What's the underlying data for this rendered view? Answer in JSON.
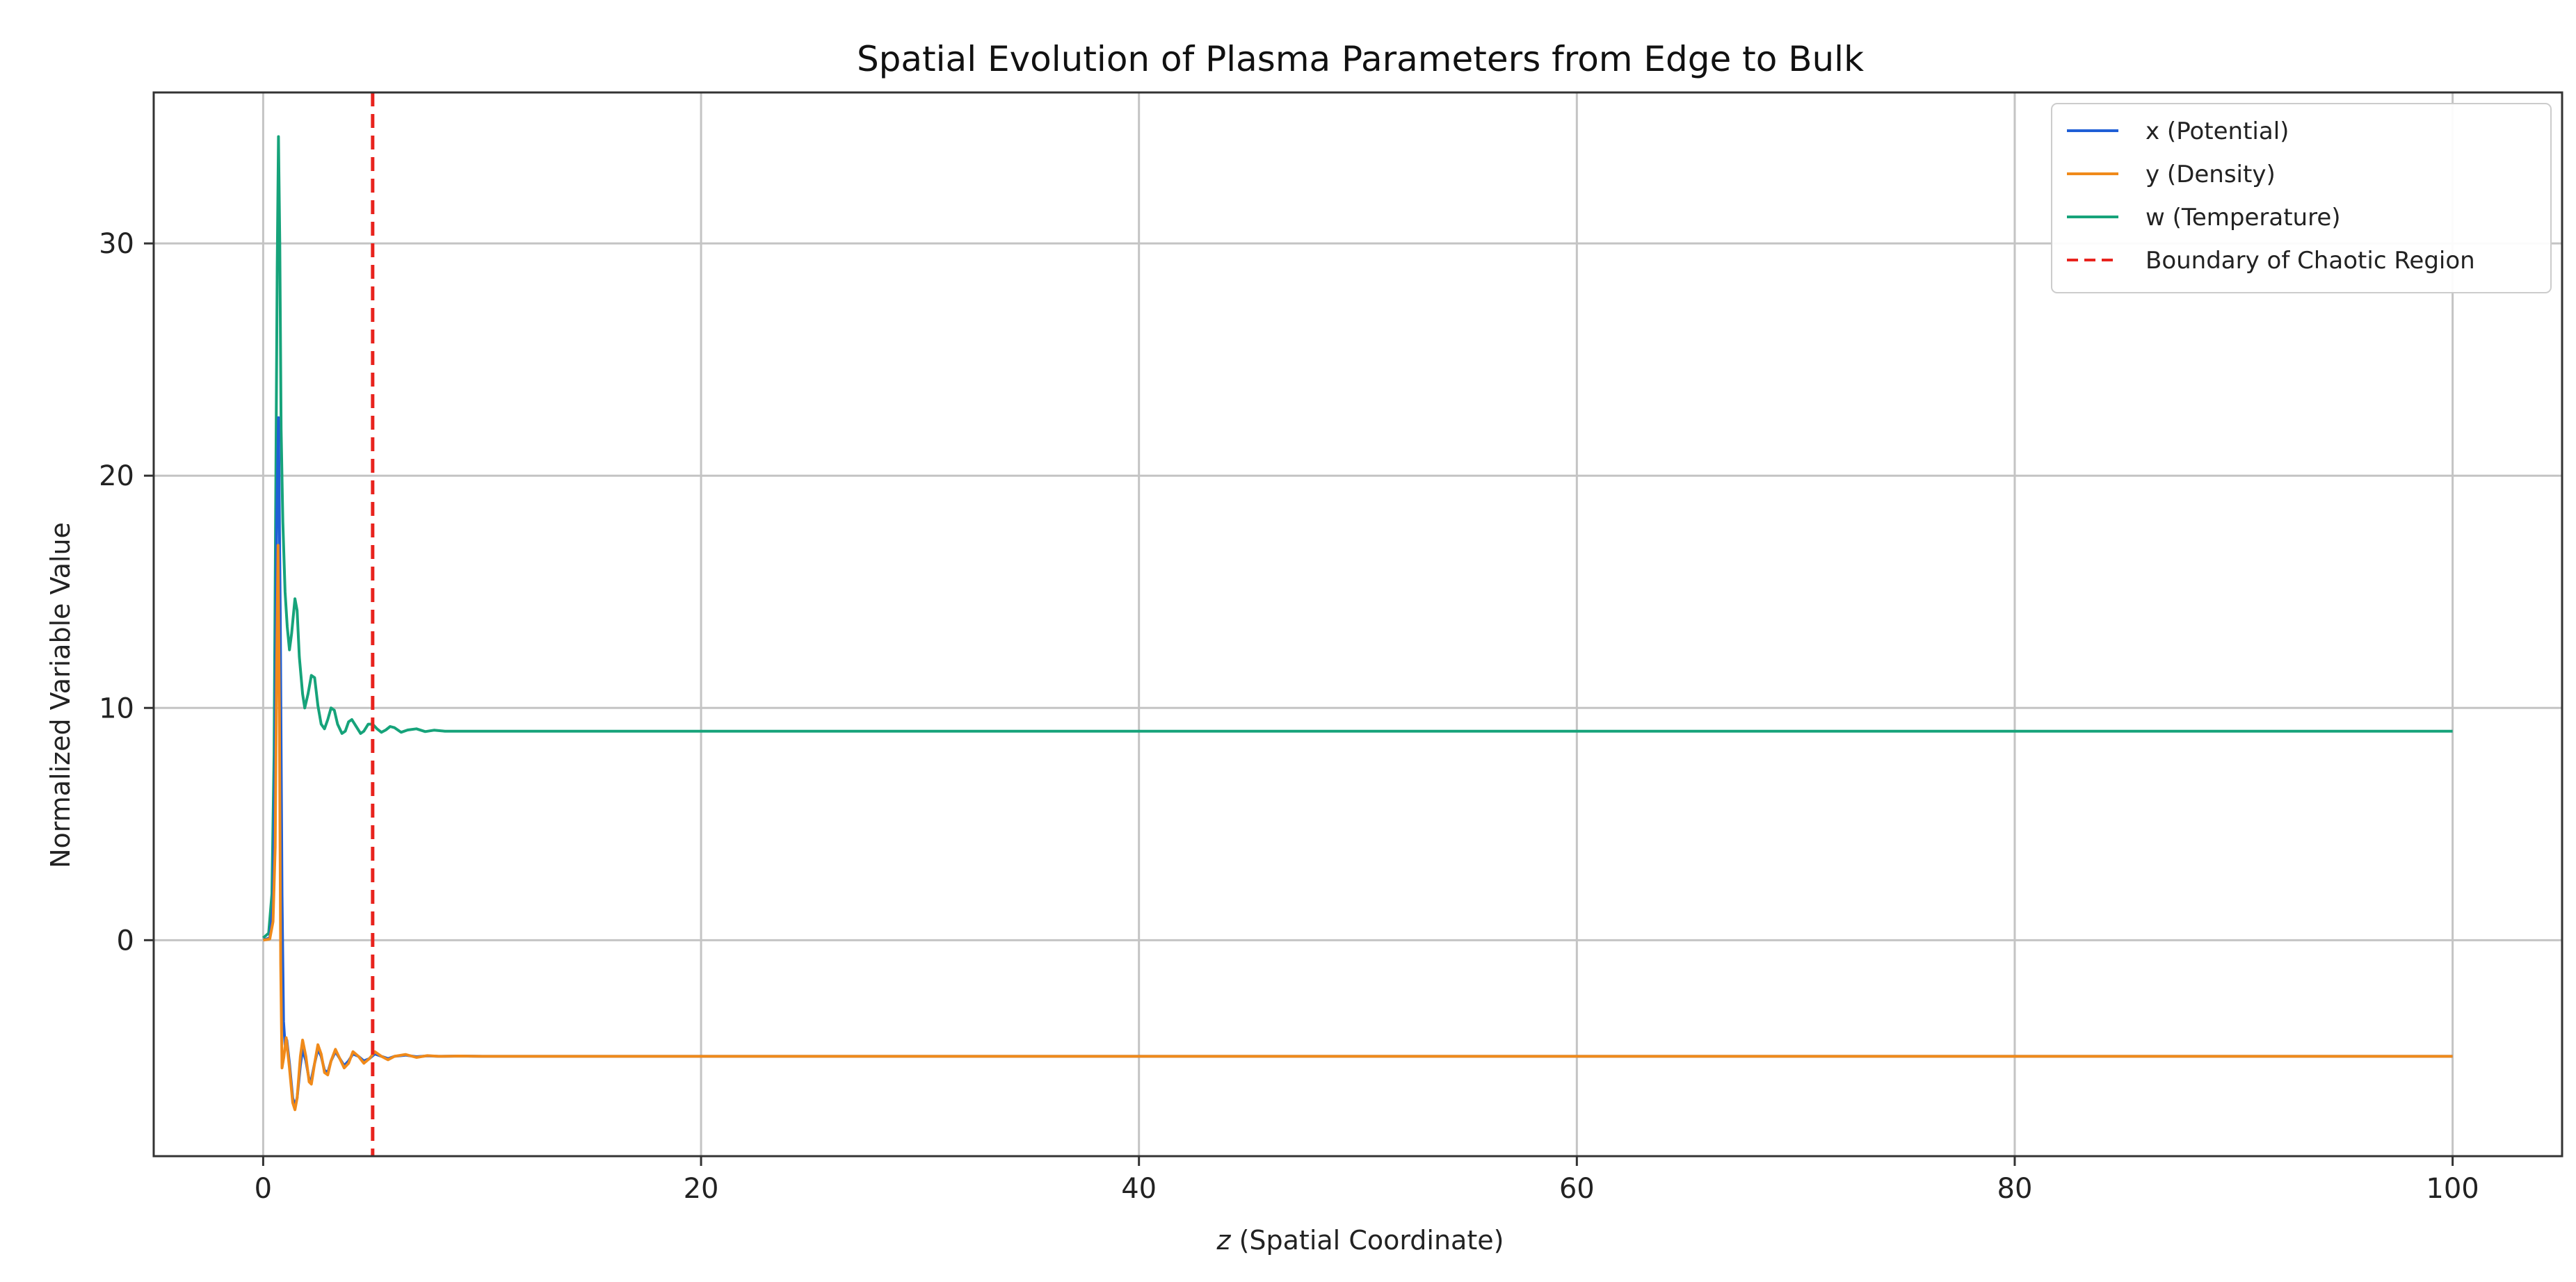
{
  "chart_data": {
    "type": "line",
    "title": "Spatial Evolution of Plasma Parameters from Edge to Bulk",
    "xlabel_italic": "z",
    "xlabel_rest": " (Spatial Coordinate)",
    "ylabel": "Normalized Variable Value",
    "xlim": [
      -5,
      105
    ],
    "ylim": [
      -9.3,
      36.5
    ],
    "xticks": [
      0,
      20,
      40,
      60,
      80,
      100
    ],
    "yticks": [
      0,
      10,
      20,
      30
    ],
    "grid": true,
    "legend_position": "top-right",
    "series": [
      {
        "name": "x (Potential)",
        "color": "#1f5fd6",
        "points": [
          [
            0,
            0
          ],
          [
            0.3,
            0.1
          ],
          [
            0.45,
            1.5
          ],
          [
            0.55,
            8
          ],
          [
            0.62,
            18
          ],
          [
            0.7,
            22.5
          ],
          [
            0.78,
            14
          ],
          [
            0.86,
            2
          ],
          [
            0.93,
            -3.5
          ],
          [
            1.0,
            -4.5
          ],
          [
            1.08,
            -4.3
          ],
          [
            1.2,
            -5.3
          ],
          [
            1.35,
            -6.8
          ],
          [
            1.45,
            -7.1
          ],
          [
            1.55,
            -6.8
          ],
          [
            1.7,
            -5.4
          ],
          [
            1.8,
            -4.7
          ],
          [
            1.95,
            -5.2
          ],
          [
            2.1,
            -6.0
          ],
          [
            2.2,
            -6.0
          ],
          [
            2.35,
            -5.3
          ],
          [
            2.5,
            -4.7
          ],
          [
            2.65,
            -5.0
          ],
          [
            2.8,
            -5.6
          ],
          [
            2.95,
            -5.7
          ],
          [
            3.1,
            -5.2
          ],
          [
            3.3,
            -4.8
          ],
          [
            3.5,
            -5.1
          ],
          [
            3.7,
            -5.4
          ],
          [
            3.9,
            -5.2
          ],
          [
            4.1,
            -4.9
          ],
          [
            4.35,
            -5.0
          ],
          [
            4.6,
            -5.2
          ],
          [
            4.85,
            -5.1
          ],
          [
            5.1,
            -4.9
          ],
          [
            5.4,
            -5.0
          ],
          [
            5.7,
            -5.1
          ],
          [
            6.0,
            -5.0
          ],
          [
            6.5,
            -4.95
          ],
          [
            7,
            -5.02
          ],
          [
            7.5,
            -4.98
          ],
          [
            8,
            -5.0
          ],
          [
            9,
            -4.99
          ],
          [
            10,
            -5.0
          ],
          [
            20,
            -5.0
          ],
          [
            40,
            -5.0
          ],
          [
            60,
            -5.0
          ],
          [
            80,
            -5.0
          ],
          [
            100,
            -5.0
          ]
        ]
      },
      {
        "name": "y (Density)",
        "color": "#f08a1a",
        "points": [
          [
            0,
            0
          ],
          [
            0.3,
            0.05
          ],
          [
            0.45,
            0.8
          ],
          [
            0.55,
            4
          ],
          [
            0.62,
            12
          ],
          [
            0.68,
            17
          ],
          [
            0.74,
            10
          ],
          [
            0.8,
            -1
          ],
          [
            0.86,
            -5.5
          ],
          [
            0.95,
            -5.0
          ],
          [
            1.05,
            -4.2
          ],
          [
            1.2,
            -5.5
          ],
          [
            1.35,
            -7.0
          ],
          [
            1.45,
            -7.3
          ],
          [
            1.55,
            -6.8
          ],
          [
            1.7,
            -5.0
          ],
          [
            1.8,
            -4.3
          ],
          [
            1.95,
            -5.0
          ],
          [
            2.1,
            -6.1
          ],
          [
            2.2,
            -6.2
          ],
          [
            2.35,
            -5.3
          ],
          [
            2.5,
            -4.5
          ],
          [
            2.65,
            -4.9
          ],
          [
            2.8,
            -5.7
          ],
          [
            2.95,
            -5.8
          ],
          [
            3.1,
            -5.2
          ],
          [
            3.3,
            -4.7
          ],
          [
            3.5,
            -5.1
          ],
          [
            3.7,
            -5.5
          ],
          [
            3.9,
            -5.3
          ],
          [
            4.1,
            -4.8
          ],
          [
            4.35,
            -5.0
          ],
          [
            4.6,
            -5.3
          ],
          [
            4.85,
            -5.1
          ],
          [
            5.1,
            -4.8
          ],
          [
            5.4,
            -5.0
          ],
          [
            5.7,
            -5.15
          ],
          [
            6.0,
            -5.0
          ],
          [
            6.5,
            -4.92
          ],
          [
            7,
            -5.05
          ],
          [
            7.5,
            -4.97
          ],
          [
            8,
            -5.0
          ],
          [
            9,
            -4.99
          ],
          [
            10,
            -5.0
          ],
          [
            20,
            -5.0
          ],
          [
            40,
            -5.0
          ],
          [
            60,
            -5.0
          ],
          [
            80,
            -5.0
          ],
          [
            100,
            -5.0
          ]
        ]
      },
      {
        "name": "w (Temperature)",
        "color": "#16a37a",
        "points": [
          [
            0,
            0.1
          ],
          [
            0.25,
            0.3
          ],
          [
            0.4,
            2
          ],
          [
            0.5,
            8
          ],
          [
            0.58,
            20
          ],
          [
            0.64,
            29
          ],
          [
            0.7,
            34.6
          ],
          [
            0.76,
            30
          ],
          [
            0.82,
            22
          ],
          [
            0.9,
            18
          ],
          [
            1.0,
            15
          ],
          [
            1.1,
            13.5
          ],
          [
            1.2,
            12.5
          ],
          [
            1.3,
            13.2
          ],
          [
            1.45,
            14.7
          ],
          [
            1.55,
            14.2
          ],
          [
            1.65,
            12.2
          ],
          [
            1.8,
            10.6
          ],
          [
            1.9,
            10.0
          ],
          [
            2.05,
            10.6
          ],
          [
            2.2,
            11.4
          ],
          [
            2.35,
            11.3
          ],
          [
            2.5,
            10.1
          ],
          [
            2.65,
            9.3
          ],
          [
            2.8,
            9.1
          ],
          [
            2.95,
            9.5
          ],
          [
            3.1,
            10.0
          ],
          [
            3.25,
            9.9
          ],
          [
            3.4,
            9.3
          ],
          [
            3.6,
            8.9
          ],
          [
            3.75,
            9.0
          ],
          [
            3.9,
            9.4
          ],
          [
            4.05,
            9.5
          ],
          [
            4.25,
            9.2
          ],
          [
            4.45,
            8.9
          ],
          [
            4.6,
            9.0
          ],
          [
            4.8,
            9.3
          ],
          [
            5.0,
            9.3
          ],
          [
            5.2,
            9.1
          ],
          [
            5.4,
            8.95
          ],
          [
            5.6,
            9.05
          ],
          [
            5.8,
            9.2
          ],
          [
            6.0,
            9.15
          ],
          [
            6.3,
            8.95
          ],
          [
            6.6,
            9.05
          ],
          [
            7.0,
            9.1
          ],
          [
            7.4,
            8.98
          ],
          [
            7.8,
            9.04
          ],
          [
            8.3,
            9.0
          ],
          [
            9,
            9.0
          ],
          [
            10,
            9.0
          ],
          [
            20,
            9.0
          ],
          [
            40,
            9.0
          ],
          [
            60,
            9.0
          ],
          [
            80,
            9.0
          ],
          [
            100,
            9.0
          ]
        ]
      }
    ],
    "vline": {
      "name": "Boundary of Chaotic Region",
      "x": 5,
      "color": "#e8231d",
      "style": "dashed"
    }
  }
}
